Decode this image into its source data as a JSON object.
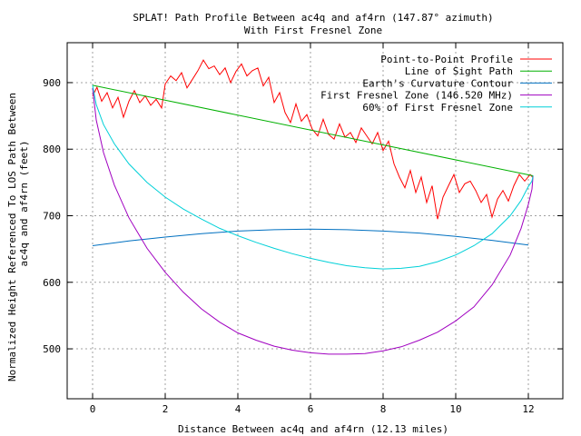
{
  "chart_data": {
    "type": "line",
    "title": "SPLAT! Path Profile Between ac4q and af4rn (147.87° azimuth)",
    "subtitle": "With First Fresnel Zone",
    "xlabel": "Distance Between ac4q and af4rn (12.13 miles)",
    "ylabel_line1": "Normalized Height Referenced To LOS Path Between",
    "ylabel_line2": "ac4q and af4rn (feet)",
    "xlim": [
      -0.7,
      12.95
    ],
    "ylim": [
      425,
      960
    ],
    "x_ticks": [
      0,
      2,
      4,
      6,
      8,
      10,
      12
    ],
    "y_ticks": [
      500,
      600,
      700,
      800,
      900
    ],
    "grid": true,
    "legend_position": "top-right",
    "series": [
      {
        "name": "Point-to-Point Profile",
        "color": "#ff0000",
        "x": [
          0,
          0.12,
          0.25,
          0.4,
          0.55,
          0.7,
          0.85,
          1.0,
          1.15,
          1.3,
          1.45,
          1.6,
          1.75,
          1.9,
          2.0,
          2.15,
          2.3,
          2.45,
          2.6,
          2.75,
          2.9,
          3.05,
          3.2,
          3.35,
          3.5,
          3.65,
          3.8,
          3.95,
          4.1,
          4.25,
          4.4,
          4.55,
          4.7,
          4.85,
          5.0,
          5.15,
          5.3,
          5.45,
          5.6,
          5.75,
          5.9,
          6.05,
          6.2,
          6.35,
          6.5,
          6.65,
          6.8,
          6.95,
          7.1,
          7.25,
          7.4,
          7.55,
          7.7,
          7.85,
          8.0,
          8.15,
          8.3,
          8.45,
          8.6,
          8.75,
          8.9,
          9.05,
          9.2,
          9.35,
          9.5,
          9.65,
          9.8,
          9.95,
          10.1,
          10.25,
          10.4,
          10.55,
          10.7,
          10.85,
          11.0,
          11.15,
          11.3,
          11.45,
          11.6,
          11.75,
          11.9,
          12.05,
          12.13
        ],
        "y": [
          880,
          893,
          872,
          885,
          862,
          878,
          848,
          872,
          888,
          870,
          880,
          866,
          875,
          862,
          898,
          910,
          903,
          915,
          892,
          905,
          918,
          934,
          921,
          925,
          912,
          922,
          900,
          917,
          928,
          910,
          918,
          922,
          895,
          908,
          870,
          885,
          855,
          840,
          868,
          842,
          852,
          830,
          820,
          845,
          822,
          815,
          838,
          818,
          825,
          810,
          832,
          820,
          808,
          825,
          798,
          812,
          778,
          758,
          742,
          768,
          735,
          758,
          720,
          745,
          695,
          728,
          745,
          762,
          735,
          748,
          752,
          738,
          720,
          732,
          698,
          725,
          738,
          722,
          745,
          762,
          752,
          762,
          757
        ]
      },
      {
        "name": "Line of Sight Path",
        "color": "#00b000",
        "x": [
          0,
          12.13
        ],
        "y": [
          896,
          760
        ]
      },
      {
        "name": "Earth's Curvature Contour",
        "color": "#0070c0",
        "x": [
          0,
          1,
          2,
          3,
          4,
          5,
          6,
          7,
          8,
          9,
          10,
          11,
          12
        ],
        "y": [
          655,
          662,
          668,
          673,
          677,
          679,
          680,
          679,
          677,
          674,
          669,
          663,
          656
        ]
      },
      {
        "name": "First Fresnel Zone (146.520 MHz)",
        "color": "#a000c0",
        "x": [
          0,
          0.1,
          0.3,
          0.6,
          1.0,
          1.5,
          2.0,
          2.5,
          3.0,
          3.5,
          4.0,
          4.5,
          5.0,
          5.5,
          6.0,
          6.5,
          7.0,
          7.5,
          8.0,
          8.5,
          9.0,
          9.5,
          10.0,
          10.5,
          11.0,
          11.5,
          11.8,
          12.0,
          12.1,
          12.13
        ],
        "y": [
          892,
          844,
          795,
          746,
          697,
          651,
          615,
          585,
          560,
          540,
          524,
          513,
          504,
          498,
          494,
          492,
          492,
          493,
          497,
          503,
          513,
          525,
          542,
          563,
          596,
          641,
          681,
          717,
          740,
          760
        ]
      },
      {
        "name": "60% of First Fresnel Zone",
        "color": "#00d0d8",
        "x": [
          0,
          0.1,
          0.3,
          0.6,
          1.0,
          1.5,
          2.0,
          2.5,
          3.0,
          3.5,
          4.0,
          4.5,
          5.0,
          5.5,
          6.0,
          6.5,
          7.0,
          7.5,
          8.0,
          8.5,
          9.0,
          9.5,
          10.0,
          10.5,
          11.0,
          11.5,
          11.8,
          12.0,
          12.1,
          12.13
        ],
        "y": [
          896,
          867,
          837,
          808,
          778,
          750,
          728,
          710,
          695,
          681,
          670,
          660,
          651,
          643,
          636,
          630,
          625,
          622,
          620,
          621,
          624,
          631,
          641,
          655,
          673,
          700,
          723,
          744,
          752,
          760
        ]
      }
    ]
  }
}
